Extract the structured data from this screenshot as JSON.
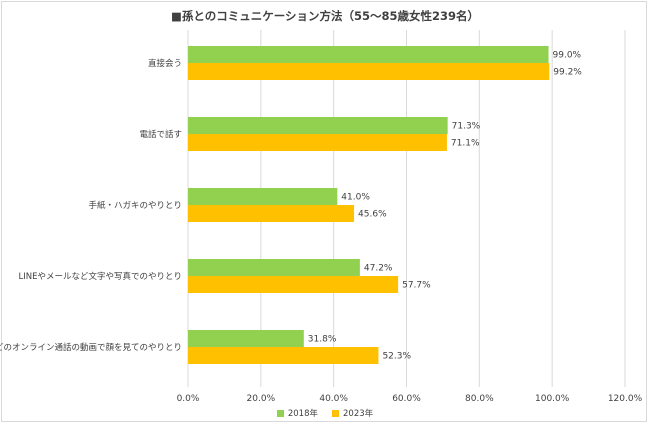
{
  "chart_data": {
    "type": "bar",
    "orientation": "horizontal",
    "title": "■孫とのコミュニケーション方法（55～85歳女性239名）",
    "categories": [
      "直接会う",
      "電話で話す",
      "手紙・ハガキのやりとり",
      "LINEやメールなど文字や写真でのやりとり",
      "zoomなどのオンライン通話の動画で顔を見てのやりとり"
    ],
    "series": [
      {
        "name": "2018年",
        "color": "#92d050",
        "values": [
          99.0,
          71.3,
          41.0,
          47.2,
          31.8
        ]
      },
      {
        "name": "2023年",
        "color": "#ffc000",
        "values": [
          99.2,
          71.1,
          45.6,
          57.7,
          52.3
        ]
      }
    ],
    "xlim": [
      0,
      120
    ],
    "ticks": [
      0,
      20,
      40,
      60,
      80,
      100,
      120
    ],
    "tick_labels": [
      "0.0%",
      "20.0%",
      "40.0%",
      "60.0%",
      "80.0%",
      "100.0%",
      "120.0%"
    ],
    "grid": true,
    "legend": "bottom"
  }
}
